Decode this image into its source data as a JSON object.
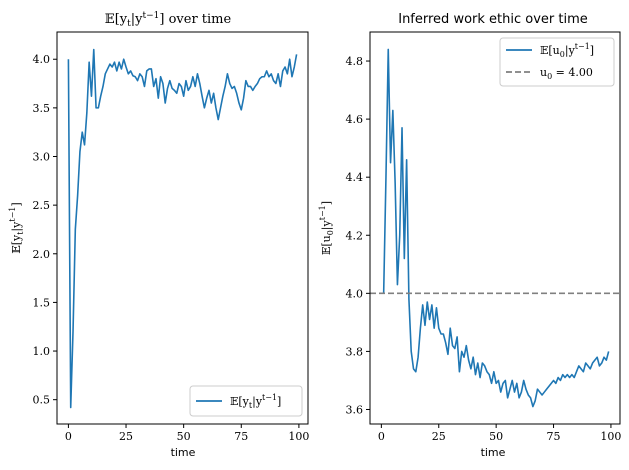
{
  "chart_data": [
    {
      "type": "line",
      "title_main": "𝔼[y",
      "title_sub": "t",
      "title_mid": "|y",
      "title_sup": "t−1",
      "title_end": "] over time",
      "xlabel": "time",
      "ylabel": "𝔼[y_t|y^{t−1}]",
      "xlim": [
        -4.95,
        103.95
      ],
      "ylim": [
        0.25,
        4.28
      ],
      "xticks": [
        0,
        25,
        50,
        75,
        100
      ],
      "yticks": [
        0.5,
        1.0,
        1.5,
        2.0,
        2.5,
        3.0,
        3.5,
        4.0
      ],
      "ytick_labels": [
        "0.5",
        "1.0",
        "1.5",
        "2.0",
        "2.5",
        "3.0",
        "3.5",
        "4.0"
      ],
      "legend_position": "lower-right",
      "series": [
        {
          "name": "𝔼[y_t|y^{t−1}]",
          "color": "#1f77b4",
          "x": [
            0,
            1,
            2,
            3,
            4,
            5,
            6,
            7,
            8,
            9,
            10,
            11,
            12,
            13,
            14,
            15,
            16,
            17,
            18,
            19,
            20,
            21,
            22,
            23,
            24,
            25,
            26,
            27,
            28,
            29,
            30,
            31,
            32,
            33,
            34,
            35,
            36,
            37,
            38,
            39,
            40,
            41,
            42,
            43,
            44,
            45,
            46,
            47,
            48,
            49,
            50,
            51,
            52,
            53,
            54,
            55,
            56,
            57,
            58,
            59,
            60,
            61,
            62,
            63,
            64,
            65,
            66,
            67,
            68,
            69,
            70,
            71,
            72,
            73,
            74,
            75,
            76,
            77,
            78,
            79,
            80,
            81,
            82,
            83,
            84,
            85,
            86,
            87,
            88,
            89,
            90,
            91,
            92,
            93,
            94,
            95,
            96,
            97,
            98,
            99
          ],
          "values": [
            4.0,
            0.42,
            1.2,
            2.25,
            2.6,
            3.05,
            3.25,
            3.12,
            3.45,
            3.97,
            3.62,
            4.1,
            3.5,
            3.5,
            3.62,
            3.72,
            3.85,
            3.9,
            3.95,
            3.92,
            3.97,
            3.88,
            3.97,
            3.9,
            4.0,
            3.92,
            3.85,
            3.88,
            3.83,
            3.82,
            3.78,
            3.85,
            3.82,
            3.72,
            3.88,
            3.9,
            3.9,
            3.72,
            3.8,
            3.6,
            3.82,
            3.75,
            3.55,
            3.7,
            3.78,
            3.7,
            3.68,
            3.65,
            3.75,
            3.72,
            3.62,
            3.78,
            3.68,
            3.72,
            3.82,
            3.72,
            3.85,
            3.75,
            3.62,
            3.5,
            3.6,
            3.68,
            3.55,
            3.65,
            3.5,
            3.38,
            3.5,
            3.62,
            3.72,
            3.85,
            3.75,
            3.7,
            3.72,
            3.65,
            3.55,
            3.48,
            3.6,
            3.78,
            3.72,
            3.72,
            3.68,
            3.72,
            3.75,
            3.8,
            3.82,
            3.82,
            3.88,
            3.82,
            3.85,
            3.78,
            3.75,
            3.85,
            3.72,
            3.88,
            3.92,
            3.85,
            4.0,
            3.82,
            3.92,
            4.05
          ],
          "legend": {
            "main": "𝔼[y",
            "sub": "t",
            "mid": "|y",
            "sup": "t−1",
            "end": "]"
          }
        }
      ]
    },
    {
      "type": "line",
      "title": "Inferred work ethic over time",
      "xlabel": "time",
      "ylabel": "𝔼[u_0|y^{t−1}]",
      "xlim": [
        -4.95,
        103.95
      ],
      "ylim": [
        3.55,
        4.9
      ],
      "xticks": [
        0,
        25,
        50,
        75,
        100
      ],
      "yticks": [
        3.6,
        3.8,
        4.0,
        4.2,
        4.4,
        4.6,
        4.8
      ],
      "ytick_labels": [
        "3.6",
        "3.8",
        "4.0",
        "4.2",
        "4.4",
        "4.6",
        "4.8"
      ],
      "legend_position": "top-right",
      "series": [
        {
          "name": "𝔼[u_0|y^{t−1}]",
          "color": "#1f77b4",
          "x": [
            1,
            2,
            3,
            4,
            5,
            6,
            7,
            8,
            9,
            10,
            11,
            12,
            13,
            14,
            15,
            16,
            17,
            18,
            19,
            20,
            21,
            22,
            23,
            24,
            25,
            26,
            27,
            28,
            29,
            30,
            31,
            32,
            33,
            34,
            35,
            36,
            37,
            38,
            39,
            40,
            41,
            42,
            43,
            44,
            45,
            46,
            47,
            48,
            49,
            50,
            51,
            52,
            53,
            54,
            55,
            56,
            57,
            58,
            59,
            60,
            61,
            62,
            63,
            64,
            65,
            66,
            67,
            68,
            69,
            70,
            71,
            72,
            73,
            74,
            75,
            76,
            77,
            78,
            79,
            80,
            81,
            82,
            83,
            84,
            85,
            86,
            87,
            88,
            89,
            90,
            91,
            92,
            93,
            94,
            95,
            96,
            97,
            98,
            99
          ],
          "values": [
            4.0,
            4.4,
            4.84,
            4.45,
            4.63,
            4.38,
            4.03,
            4.2,
            4.57,
            4.12,
            4.46,
            3.98,
            3.8,
            3.74,
            3.73,
            3.78,
            3.88,
            3.96,
            3.89,
            3.97,
            3.91,
            3.96,
            3.88,
            3.95,
            3.88,
            3.86,
            3.86,
            3.83,
            3.79,
            3.88,
            3.82,
            3.81,
            3.85,
            3.73,
            3.8,
            3.78,
            3.82,
            3.77,
            3.74,
            3.78,
            3.72,
            3.76,
            3.71,
            3.76,
            3.75,
            3.73,
            3.72,
            3.69,
            3.73,
            3.69,
            3.7,
            3.66,
            3.69,
            3.7,
            3.64,
            3.67,
            3.7,
            3.66,
            3.69,
            3.64,
            3.66,
            3.7,
            3.67,
            3.65,
            3.64,
            3.61,
            3.63,
            3.67,
            3.66,
            3.65,
            3.66,
            3.67,
            3.68,
            3.69,
            3.7,
            3.69,
            3.71,
            3.7,
            3.72,
            3.71,
            3.72,
            3.71,
            3.72,
            3.71,
            3.73,
            3.75,
            3.74,
            3.73,
            3.76,
            3.75,
            3.74,
            3.76,
            3.77,
            3.78,
            3.75,
            3.76,
            3.78,
            3.77,
            3.8
          ],
          "legend": {
            "main": "𝔼[u",
            "sub": "0",
            "mid": "|y",
            "sup": "t−1",
            "end": "]"
          }
        },
        {
          "name": "u_0 = 4.00",
          "color": "#808080",
          "dashed": true,
          "hline": 4.0,
          "legend": {
            "main": "u",
            "sub": "0",
            "end": " = 4.00"
          }
        }
      ]
    }
  ]
}
